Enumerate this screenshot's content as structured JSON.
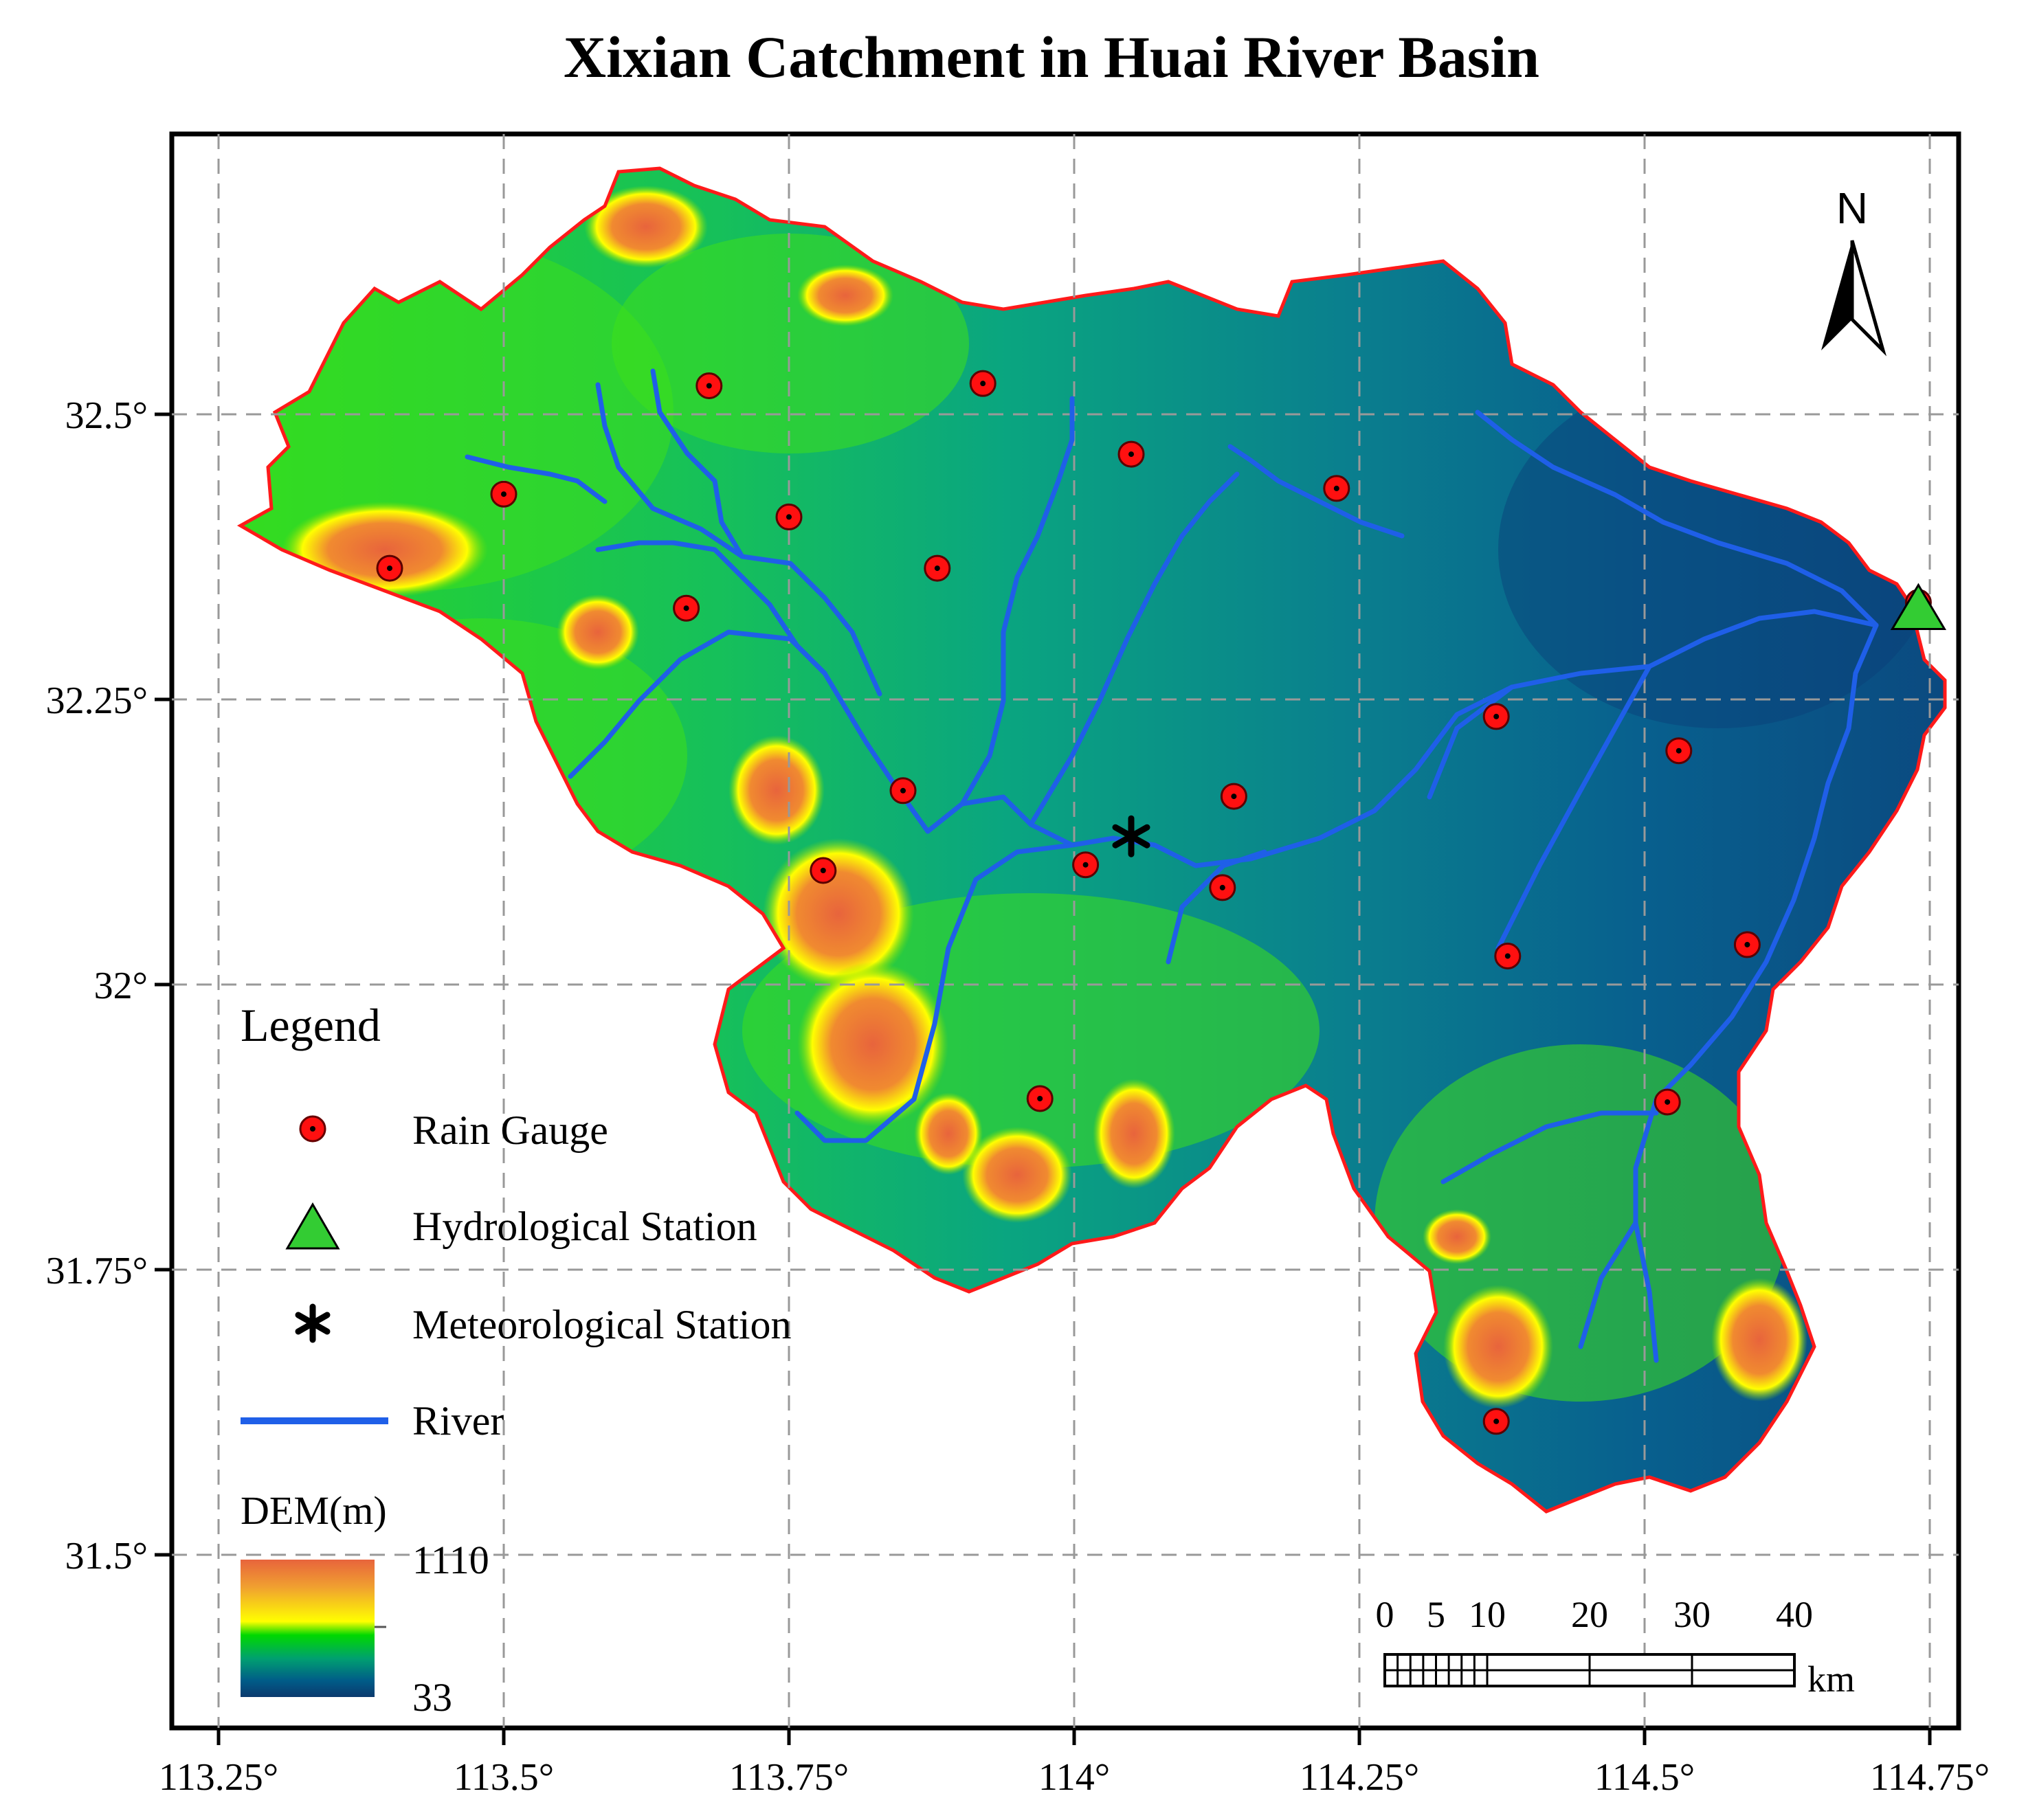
{
  "title": "Xixian Catchment in Huai River Basin",
  "axes": {
    "x_ticks": [
      "113.25°",
      "113.5°",
      "113.75°",
      "114°",
      "114.25°",
      "114.5°",
      "114.75°"
    ],
    "x_values": [
      113.25,
      113.5,
      113.75,
      114.0,
      114.25,
      114.5,
      114.75
    ],
    "y_ticks": [
      "32.5°",
      "32.25°",
      "32°",
      "31.75°",
      "31.5°"
    ],
    "y_values": [
      32.5,
      32.25,
      32.0,
      31.75,
      31.5
    ]
  },
  "north_arrow": {
    "label": "N",
    "icon": "north-arrow-icon"
  },
  "legend": {
    "title": "Legend",
    "items": [
      {
        "label": "Rain Gauge",
        "symbol": "red-dot",
        "color": "#ff0000"
      },
      {
        "label": "Hydrological Station",
        "symbol": "green-triangle",
        "color": "#33cc33"
      },
      {
        "label": "Meteorological Station",
        "symbol": "asterisk",
        "color": "#000000"
      },
      {
        "label": "River",
        "symbol": "blue-line",
        "color": "#1f5fe8"
      }
    ]
  },
  "dem_legend": {
    "title": "DEM(m)",
    "max": "1110",
    "min": "33",
    "colors": [
      "#e8643c",
      "#f0a030",
      "#ffff00",
      "#00d800",
      "#00a070",
      "#005c88",
      "#0b3a6e"
    ]
  },
  "scale_bar": {
    "labels": [
      "0",
      "5",
      "10",
      "20",
      "30",
      "40"
    ],
    "unit": "km"
  },
  "rain_gauges": [
    {
      "lon": 113.68,
      "lat": 32.525
    },
    {
      "lon": 113.92,
      "lat": 32.527
    },
    {
      "lon": 113.5,
      "lat": 32.43
    },
    {
      "lon": 113.4,
      "lat": 32.365
    },
    {
      "lon": 113.75,
      "lat": 32.41
    },
    {
      "lon": 113.66,
      "lat": 32.33
    },
    {
      "lon": 113.88,
      "lat": 32.365
    },
    {
      "lon": 114.05,
      "lat": 32.465
    },
    {
      "lon": 114.23,
      "lat": 32.435
    },
    {
      "lon": 114.74,
      "lat": 32.335
    },
    {
      "lon": 114.37,
      "lat": 32.235
    },
    {
      "lon": 114.53,
      "lat": 32.205
    },
    {
      "lon": 113.85,
      "lat": 32.17
    },
    {
      "lon": 114.14,
      "lat": 32.165
    },
    {
      "lon": 113.78,
      "lat": 32.1
    },
    {
      "lon": 114.01,
      "lat": 32.105
    },
    {
      "lon": 114.13,
      "lat": 32.085
    },
    {
      "lon": 114.38,
      "lat": 32.025
    },
    {
      "lon": 114.59,
      "lat": 32.035
    },
    {
      "lon": 113.97,
      "lat": 31.9
    },
    {
      "lon": 114.52,
      "lat": 31.897
    },
    {
      "lon": 114.37,
      "lat": 31.617
    }
  ],
  "hydrological_station": {
    "lon": 114.74,
    "lat": 32.325
  },
  "meteorological_station": {
    "lon": 114.05,
    "lat": 32.13
  }
}
